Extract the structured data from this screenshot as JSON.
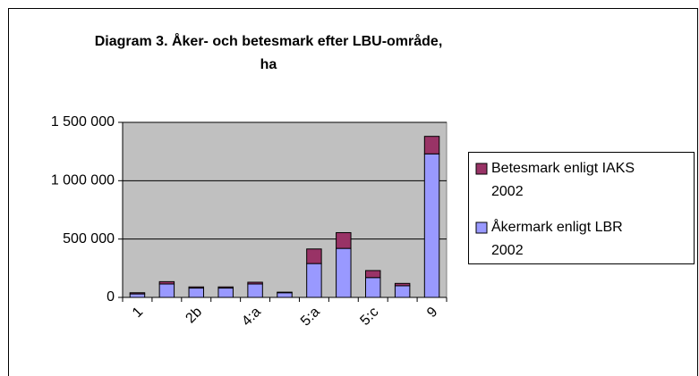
{
  "chart_data": {
    "type": "stacked_bar",
    "title": [
      "Diagram 3. Åker- och betesmark efter LBU-område,",
      "ha"
    ],
    "categories": [
      "1",
      null,
      "2b",
      null,
      "4:a",
      null,
      "5:a",
      null,
      "5:c",
      null,
      "9"
    ],
    "series": [
      {
        "name": [
          "Åkermark enligt LBR",
          "2002"
        ],
        "color": "#9999ff",
        "values": [
          30000,
          115000,
          80000,
          80000,
          115000,
          40000,
          290000,
          420000,
          170000,
          100000,
          1230000
        ]
      },
      {
        "name": [
          "Betesmark enligt IAKS",
          "2002"
        ],
        "color": "#993366",
        "values": [
          10000,
          20000,
          10000,
          10000,
          15000,
          5000,
          125000,
          135000,
          60000,
          20000,
          150000
        ]
      }
    ],
    "ylim": [
      0,
      1500000
    ],
    "yticks": [
      0,
      {
        "value": 500000,
        "label": "500 000"
      },
      {
        "value": 1000000,
        "label": "1 000 000"
      },
      {
        "value": 1500000,
        "label": "1 500 000"
      }
    ],
    "grid": true,
    "plot_background": "#c0c0c0",
    "legend": "right"
  }
}
